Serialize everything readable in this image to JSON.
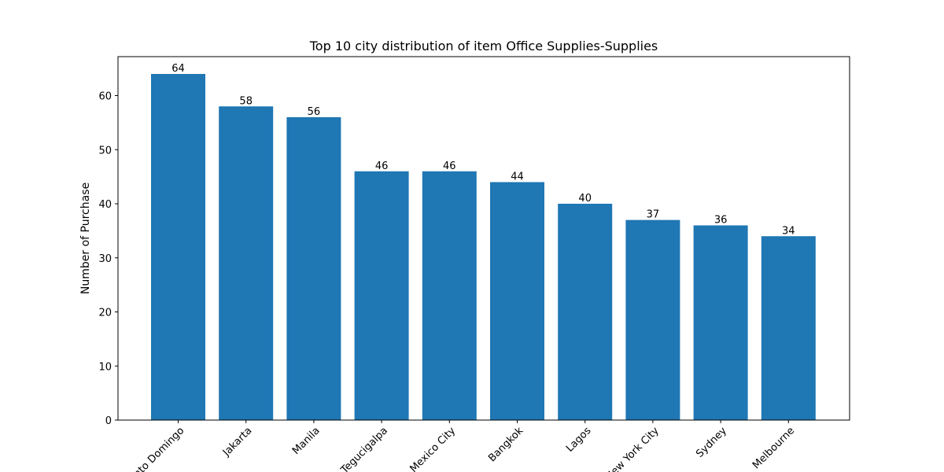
{
  "chart_data": {
    "type": "bar",
    "title": "Top 10 city distribution of item Office Supplies-Supplies",
    "xlabel": "",
    "ylabel": "Number of Purchase",
    "categories": [
      "Santo Domingo",
      "Jakarta",
      "Manila",
      "Tegucigalpa",
      "Mexico City",
      "Bangkok",
      "Lagos",
      "New York City",
      "Sydney",
      "Melbourne"
    ],
    "values": [
      64,
      58,
      56,
      46,
      46,
      44,
      40,
      37,
      36,
      34
    ],
    "ylim": [
      0,
      67.2
    ],
    "yticks": [
      0,
      10,
      20,
      30,
      40,
      50,
      60
    ],
    "bar_color": "#1f77b4",
    "grid": false,
    "legend": "none"
  }
}
